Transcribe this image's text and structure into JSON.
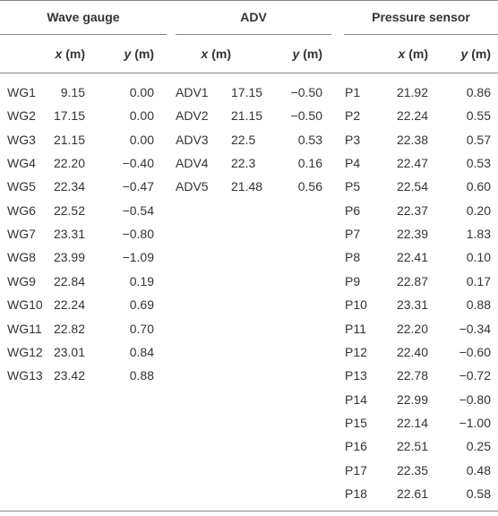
{
  "table": {
    "groups": [
      "Wave gauge",
      "ADV",
      "Pressure sensor"
    ],
    "subheaders": [
      {
        "var": "x",
        "unit": "(m)"
      },
      {
        "var": "y",
        "unit": "(m)"
      }
    ],
    "wave_gauge": [
      [
        "WG1",
        "9.15",
        "0.00"
      ],
      [
        "WG2",
        "17.15",
        "0.00"
      ],
      [
        "WG3",
        "21.15",
        "0.00"
      ],
      [
        "WG4",
        "22.20",
        "−0.40"
      ],
      [
        "WG5",
        "22.34",
        "−0.47"
      ],
      [
        "WG6",
        "22.52",
        "−0.54"
      ],
      [
        "WG7",
        "23.31",
        "−0.80"
      ],
      [
        "WG8",
        "23.99",
        "−1.09"
      ],
      [
        "WG9",
        "22.84",
        "0.19"
      ],
      [
        "WG10",
        "22.24",
        "0.69"
      ],
      [
        "WG11",
        "22.82",
        "0.70"
      ],
      [
        "WG12",
        "23.01",
        "0.84"
      ],
      [
        "WG13",
        "23.42",
        "0.88"
      ]
    ],
    "adv": [
      [
        "ADV1",
        "17.15",
        "−0.50"
      ],
      [
        "ADV2",
        "21.15",
        "−0.50"
      ],
      [
        "ADV3",
        "22.5",
        "0.53"
      ],
      [
        "ADV4",
        "22.3",
        "0.16"
      ],
      [
        "ADV5",
        "21.48",
        "0.56"
      ]
    ],
    "pressure_sensor": [
      [
        "P1",
        "21.92",
        "0.86"
      ],
      [
        "P2",
        "22.24",
        "0.55"
      ],
      [
        "P3",
        "22.38",
        "0.57"
      ],
      [
        "P4",
        "22.47",
        "0.53"
      ],
      [
        "P5",
        "22.54",
        "0.60"
      ],
      [
        "P6",
        "22.37",
        "0.20"
      ],
      [
        "P7",
        "22.39",
        "1.83"
      ],
      [
        "P8",
        "22.41",
        "0.10"
      ],
      [
        "P9",
        "22.87",
        "0.17"
      ],
      [
        "P10",
        "23.31",
        "0.88"
      ],
      [
        "P11",
        "22.20",
        "−0.34"
      ],
      [
        "P12",
        "22.40",
        "−0.60"
      ],
      [
        "P13",
        "22.78",
        "−0.72"
      ],
      [
        "P14",
        "22.99",
        "−0.80"
      ],
      [
        "P15",
        "22.14",
        "−1.00"
      ],
      [
        "P16",
        "22.51",
        "0.25"
      ],
      [
        "P17",
        "22.35",
        "0.48"
      ],
      [
        "P18",
        "22.61",
        "0.58"
      ]
    ]
  }
}
